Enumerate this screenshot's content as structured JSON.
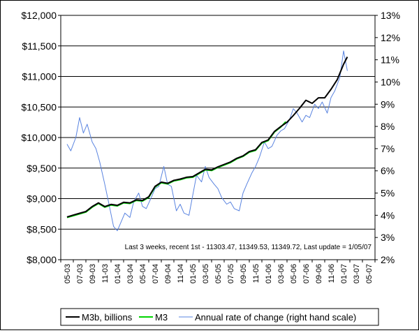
{
  "chart_data": {
    "type": "line",
    "title": "",
    "xlabel": "",
    "ylabel": "",
    "y_left": {
      "min": 8000,
      "max": 12000,
      "step": 500,
      "tick_labels": [
        "$8,000",
        "$8,500",
        "$9,000",
        "$9,500",
        "$10,000",
        "$10,500",
        "$11,000",
        "$11,500",
        "$12,000"
      ]
    },
    "y_right": {
      "min": 2,
      "max": 13,
      "step": 1,
      "tick_labels": [
        "2%",
        "3%",
        "4%",
        "5%",
        "6%",
        "7%",
        "8%",
        "9%",
        "10%",
        "11%",
        "12%",
        "13%"
      ]
    },
    "x_categories": [
      "05-03",
      "07-03",
      "09-03",
      "11-03",
      "01-04",
      "03-04",
      "05-04",
      "07-04",
      "09-04",
      "11-04",
      "01-05",
      "03-05",
      "05-05",
      "07-05",
      "09-05",
      "11-05",
      "01-06",
      "03-06",
      "05-06",
      "07-06",
      "09-06",
      "11-06",
      "01-07",
      "03-07",
      "05-07"
    ],
    "grid": "horizontal",
    "annotation": "Last 3 weeks, recent 1st - 11303.47, 11349.53, 11349.72, Last update = 1/05/07",
    "series": [
      {
        "name": "M3b, billions",
        "axis": "left",
        "color": "#000000",
        "x": [
          0.0,
          0.5,
          1.0,
          1.5,
          2.0,
          2.5,
          3.0,
          3.5,
          4.0,
          4.5,
          5.0,
          5.5,
          6.0,
          6.5,
          7.0,
          7.5,
          8.0,
          8.5,
          9.0,
          9.5,
          10.0,
          10.5,
          11.0,
          11.5,
          12.0,
          12.5,
          13.0,
          13.5,
          14.0,
          14.5,
          15.0,
          15.5,
          16.0,
          16.5,
          17.0,
          17.5,
          18.0,
          18.5,
          19.0,
          19.5,
          20.0,
          20.5,
          21.0,
          21.5,
          22.0,
          22.3
        ],
        "y": [
          8700,
          8730,
          8760,
          8790,
          8870,
          8930,
          8870,
          8905,
          8890,
          8940,
          8930,
          8980,
          8970,
          9030,
          9200,
          9270,
          9250,
          9300,
          9320,
          9350,
          9360,
          9420,
          9480,
          9470,
          9520,
          9560,
          9600,
          9660,
          9700,
          9770,
          9800,
          9920,
          9960,
          10100,
          10180,
          10250,
          10360,
          10480,
          10610,
          10560,
          10650,
          10650,
          10790,
          10950,
          11200,
          11320
        ]
      },
      {
        "name": "M3",
        "axis": "left",
        "color": "#00d400",
        "x": [
          0.0,
          0.5,
          1.0,
          1.5,
          2.0,
          2.5,
          3.0,
          3.5,
          4.0,
          4.5,
          5.0,
          5.5,
          6.0,
          6.5,
          7.0,
          7.5,
          8.0,
          8.5,
          9.0,
          9.5,
          10.0,
          10.5,
          11.0,
          11.5,
          12.0,
          12.5,
          13.0,
          13.5,
          14.0,
          14.5,
          15.0,
          15.5,
          16.0,
          16.5,
          17.0,
          17.4
        ],
        "y": [
          8690,
          8720,
          8750,
          8780,
          8860,
          8920,
          8860,
          8895,
          8880,
          8930,
          8920,
          8970,
          8960,
          9020,
          9190,
          9260,
          9240,
          9290,
          9310,
          9340,
          9350,
          9410,
          9470,
          9460,
          9510,
          9550,
          9590,
          9650,
          9690,
          9760,
          9790,
          9910,
          9950,
          10090,
          10170,
          10260
        ]
      },
      {
        "name": "Annual rate of change (right hand scale)",
        "axis": "right",
        "color": "#5a84e0",
        "x": [
          0.0,
          0.3,
          0.7,
          1.0,
          1.3,
          1.6,
          2.0,
          2.3,
          2.6,
          3.0,
          3.3,
          3.7,
          4.0,
          4.3,
          4.6,
          5.0,
          5.3,
          5.7,
          6.0,
          6.3,
          6.7,
          7.0,
          7.3,
          7.7,
          8.0,
          8.3,
          8.7,
          9.0,
          9.3,
          9.7,
          10.0,
          10.3,
          10.7,
          11.0,
          11.3,
          11.7,
          12.0,
          12.3,
          12.7,
          13.0,
          13.3,
          13.7,
          14.0,
          14.3,
          14.7,
          15.0,
          15.3,
          15.7,
          16.0,
          16.3,
          16.7,
          17.0,
          17.3,
          17.7,
          18.0,
          18.3,
          18.7,
          19.0,
          19.3,
          19.7,
          20.0,
          20.3,
          20.7,
          21.0,
          21.3,
          21.7,
          22.0,
          22.3
        ],
        "y": [
          7.2,
          6.9,
          7.5,
          8.4,
          7.7,
          8.1,
          7.3,
          7.0,
          6.4,
          5.4,
          4.6,
          3.5,
          3.3,
          3.7,
          4.1,
          3.9,
          4.6,
          5.0,
          4.4,
          4.3,
          4.8,
          5.2,
          5.3,
          6.2,
          5.4,
          5.3,
          4.2,
          4.5,
          4.1,
          4.0,
          4.9,
          5.8,
          5.5,
          6.2,
          5.7,
          5.4,
          5.2,
          4.8,
          4.5,
          4.6,
          4.3,
          4.2,
          5.0,
          5.4,
          5.9,
          6.2,
          6.6,
          7.3,
          7.0,
          7.1,
          7.6,
          7.8,
          7.9,
          8.3,
          8.8,
          8.6,
          8.2,
          8.5,
          8.4,
          9.0,
          8.8,
          9.1,
          8.6,
          9.3,
          9.6,
          10.2,
          11.4,
          10.5
        ]
      }
    ],
    "legend": {
      "position": "bottom",
      "entries": [
        "M3b, billions",
        "M3",
        "Annual rate of change (right hand scale)"
      ]
    }
  }
}
